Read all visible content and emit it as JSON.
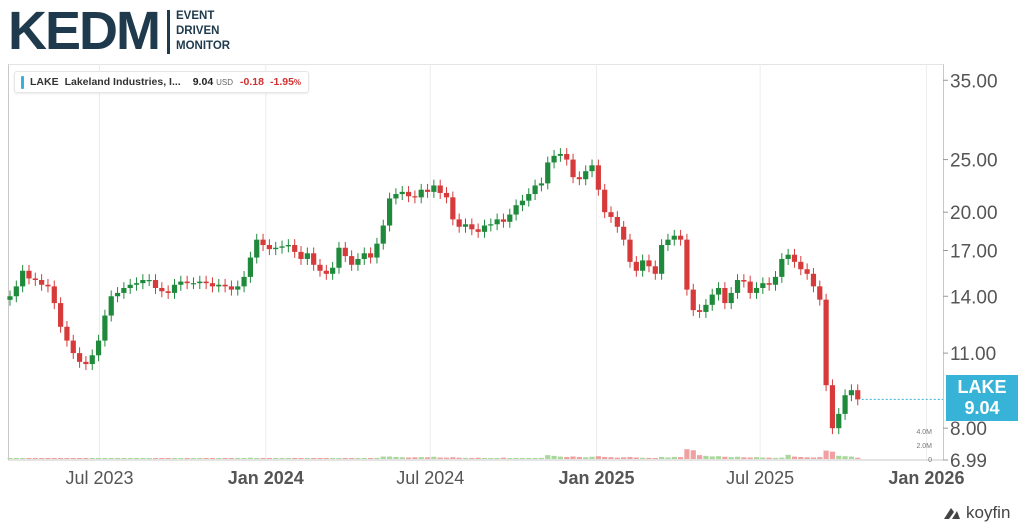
{
  "logo": {
    "main": "KEDM",
    "tag_lines": [
      "EVENT",
      "DRIVEN",
      "MONITOR"
    ]
  },
  "legend": {
    "symbol": "LAKE",
    "name": "Lakeland Industries, I...",
    "price": "9.04",
    "currency": "USD",
    "change": "-0.18",
    "change_pct": "-1.95",
    "pct_sign": "%"
  },
  "price_tag": {
    "symbol": "LAKE",
    "price": "9.04"
  },
  "branding": {
    "name": "koyfin"
  },
  "colors": {
    "up": "#1f8a3c",
    "down": "#d63a3a",
    "vol_up": "#a8d89a",
    "vol_down": "#f0a0a0",
    "accent": "#36b3d6"
  },
  "chart_data": {
    "type": "candlestick",
    "title": "",
    "y_scale": "log",
    "ylim": [
      6.99,
      37.5
    ],
    "y_ticks": [
      "35.00",
      "25.00",
      "20.00",
      "17.00",
      "14.00",
      "11.00",
      "8.00",
      "6.99"
    ],
    "y_tick_values": [
      35,
      25,
      20,
      17,
      14,
      11,
      8,
      6.99
    ],
    "x_ticks": [
      {
        "label": "Jul 2023",
        "bold": false
      },
      {
        "label": "Jan 2024",
        "bold": true
      },
      {
        "label": "Jul 2024",
        "bold": false
      },
      {
        "label": "Jan 2025",
        "bold": true
      },
      {
        "label": "Jul 2025",
        "bold": false
      },
      {
        "label": "Jan 2026",
        "bold": true
      }
    ],
    "volume_ticks": [
      "4.0M",
      "2.0M",
      "0"
    ],
    "volume_tick_values": [
      4.0,
      2.0,
      0
    ],
    "period": "weekly",
    "start": "2023-03-24",
    "closes": [
      14.0,
      14.6,
      15.6,
      15.1,
      15.0,
      14.7,
      14.6,
      13.6,
      12.3,
      11.6,
      11.0,
      10.6,
      10.5,
      10.9,
      11.6,
      12.9,
      14.0,
      14.2,
      14.5,
      14.7,
      14.8,
      15.0,
      15.0,
      14.5,
      14.3,
      14.2,
      14.7,
      14.9,
      14.8,
      14.8,
      14.9,
      14.8,
      14.6,
      14.7,
      14.6,
      14.4,
      14.6,
      15.2,
      16.5,
      17.8,
      17.4,
      17.1,
      17.2,
      17.3,
      17.4,
      16.9,
      16.4,
      16.8,
      16.0,
      15.6,
      15.4,
      15.8,
      17.2,
      16.6,
      16.0,
      16.4,
      16.8,
      16.5,
      17.5,
      18.9,
      21.2,
      21.6,
      21.8,
      21.4,
      21.3,
      22.0,
      21.8,
      22.4,
      21.7,
      21.3,
      19.4,
      18.8,
      19.0,
      18.6,
      18.4,
      18.9,
      19.0,
      19.4,
      19.2,
      19.8,
      20.6,
      21.0,
      21.6,
      22.4,
      22.6,
      24.7,
      25.4,
      25.6,
      25.0,
      23.2,
      23.0,
      23.8,
      24.4,
      22.0,
      20.0,
      19.6,
      18.8,
      17.8,
      16.2,
      15.6,
      16.3,
      15.9,
      15.4,
      17.4,
      17.8,
      18.1,
      17.8,
      14.4,
      13.2,
      13.1,
      13.5,
      14.1,
      14.5,
      13.6,
      14.2,
      15.0,
      14.9,
      14.2,
      14.5,
      14.8,
      14.7,
      15.2,
      16.4,
      16.7,
      16.2,
      15.7,
      15.4,
      14.6,
      13.8,
      9.6,
      8.0,
      8.5,
      9.2,
      9.4,
      9.04
    ],
    "volumes": [
      0.05,
      0.06,
      0.07,
      0.05,
      0.08,
      0.06,
      0.07,
      0.09,
      0.1,
      0.08,
      0.07,
      0.08,
      0.06,
      0.08,
      0.12,
      0.1,
      0.09,
      0.08,
      0.06,
      0.07,
      0.08,
      0.09,
      0.07,
      0.06,
      0.07,
      0.05,
      0.08,
      0.09,
      0.08,
      0.07,
      0.06,
      0.05,
      0.08,
      0.06,
      0.07,
      0.1,
      0.09,
      0.11,
      0.18,
      0.14,
      0.12,
      0.09,
      0.08,
      0.07,
      0.1,
      0.09,
      0.08,
      0.07,
      0.09,
      0.1,
      0.08,
      0.09,
      0.12,
      0.08,
      0.07,
      0.08,
      0.1,
      0.09,
      0.16,
      0.35,
      0.35,
      0.29,
      0.25,
      0.21,
      0.24,
      0.27,
      0.24,
      0.32,
      0.21,
      0.19,
      0.25,
      0.19,
      0.16,
      0.15,
      0.18,
      0.14,
      0.13,
      0.12,
      0.19,
      0.13,
      0.15,
      0.12,
      0.11,
      0.14,
      0.16,
      0.55,
      0.45,
      0.34,
      0.29,
      0.36,
      0.29,
      0.24,
      0.32,
      0.4,
      0.29,
      0.26,
      0.19,
      0.24,
      0.29,
      0.21,
      0.18,
      0.16,
      0.14,
      0.29,
      0.22,
      0.29,
      0.27,
      1.4,
      1.25,
      0.55,
      0.45,
      0.37,
      0.4,
      0.32,
      0.27,
      0.32,
      0.24,
      0.21,
      0.27,
      0.21,
      0.19,
      0.16,
      0.19,
      0.6,
      0.34,
      0.29,
      0.24,
      0.21,
      0.27,
      1.2,
      1.05,
      0.46,
      0.4,
      0.35,
      0.18
    ]
  }
}
